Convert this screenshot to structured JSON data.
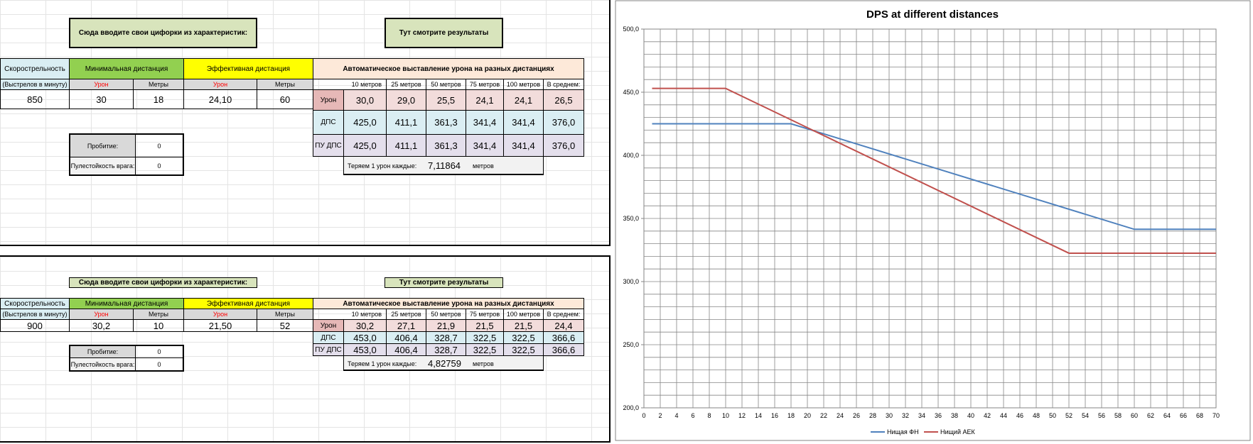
{
  "panel1": {
    "input_title": "Сюда вводите свои цифорки из характеристик:",
    "results_title": "Тут смотрите результаты",
    "rate_header": "Скорострельность",
    "rate_sub": "(Выстрелов в минуту)",
    "min_dist_header": "Минимальная  дистанция",
    "eff_dist_header": "Эффективная  дистанция",
    "auto_header": "Автоматическое выставление урона на разных дистанциях",
    "damage_label": "Урон",
    "meters_label": "Метры",
    "rate": "850",
    "min_damage": "30",
    "min_meters": "18",
    "eff_damage": "24,10",
    "eff_meters": "60",
    "distances": [
      "10 метров",
      "25 метров",
      "50 метров",
      "75 метров",
      "100 метров",
      "В среднем:"
    ],
    "rows": [
      {
        "label": "Урон",
        "values": [
          "30,0",
          "29,0",
          "25,5",
          "24,1",
          "24,1",
          "26,5"
        ]
      },
      {
        "label": "ДПС",
        "values": [
          "425,0",
          "411,1",
          "361,3",
          "341,4",
          "341,4",
          "376,0"
        ]
      },
      {
        "label": "ПУ ДПС",
        "values": [
          "425,0",
          "411,1",
          "361,3",
          "341,4",
          "341,4",
          "376,0"
        ]
      }
    ],
    "penetration_label": "Пробитие:",
    "penetration": "0",
    "armor_label": "Пулестойкость врага:",
    "armor": "0",
    "lose_text": "Теряем 1 урон каждые:",
    "lose_value": "7,11864",
    "lose_unit": "метров"
  },
  "panel2": {
    "input_title": "Сюда вводите свои цифорки из характеристик:",
    "results_title": "Тут смотрите результаты",
    "rate_header": "Скорострельность",
    "rate_sub": "(Выстрелов в минуту)",
    "min_dist_header": "Минимальная  дистанция",
    "eff_dist_header": "Эффективная  дистанция",
    "auto_header": "Автоматическое выставление урона на разных дистанциях",
    "damage_label": "Урон",
    "meters_label": "Метры",
    "rate": "900",
    "min_damage": "30,2",
    "min_meters": "10",
    "eff_damage": "21,50",
    "eff_meters": "52",
    "distances": [
      "10 метров",
      "25 метров",
      "50 метров",
      "75 метров",
      "100 метров",
      "В среднем:"
    ],
    "rows": [
      {
        "label": "Урон",
        "values": [
          "30,2",
          "27,1",
          "21,9",
          "21,5",
          "21,5",
          "24,4"
        ]
      },
      {
        "label": "ДПС",
        "values": [
          "453,0",
          "406,4",
          "328,7",
          "322,5",
          "322,5",
          "366,6"
        ]
      },
      {
        "label": "ПУ ДПС",
        "values": [
          "453,0",
          "406,4",
          "328,7",
          "322,5",
          "322,5",
          "366,6"
        ]
      }
    ],
    "penetration_label": "Пробитие:",
    "penetration": "0",
    "armor_label": "Пулестойкость врага:",
    "armor": "0",
    "lose_text": "Теряем 1 урон каждые:",
    "lose_value": "4,82759",
    "lose_unit": "метров"
  },
  "chart_data": {
    "type": "line",
    "title": "DPS at different distances",
    "xlabel": "",
    "ylabel": "",
    "xlim": [
      0,
      70
    ],
    "ylim": [
      200,
      500
    ],
    "x_ticks": [
      "0",
      "2",
      "4",
      "6",
      "8",
      "10",
      "12",
      "14",
      "16",
      "18",
      "20",
      "22",
      "24",
      "26",
      "28",
      "30",
      "32",
      "34",
      "36",
      "38",
      "40",
      "42",
      "44",
      "46",
      "48",
      "50",
      "52",
      "54",
      "56",
      "58",
      "60",
      "62",
      "64",
      "66",
      "68",
      "70"
    ],
    "y_ticks": [
      "200,0",
      "250,0",
      "300,0",
      "350,0",
      "400,0",
      "450,0",
      "500,0"
    ],
    "grid": true,
    "legend_position": "bottom",
    "series": [
      {
        "name": "Нищая ФН",
        "color": "#4f81bd",
        "x": [
          1,
          18,
          60,
          70
        ],
        "y": [
          425.0,
          425.0,
          341.4,
          341.4
        ]
      },
      {
        "name": "Нищий АЕК",
        "color": "#c0504d",
        "x": [
          1,
          10,
          52,
          70
        ],
        "y": [
          453.0,
          453.0,
          322.5,
          322.5
        ]
      }
    ]
  }
}
